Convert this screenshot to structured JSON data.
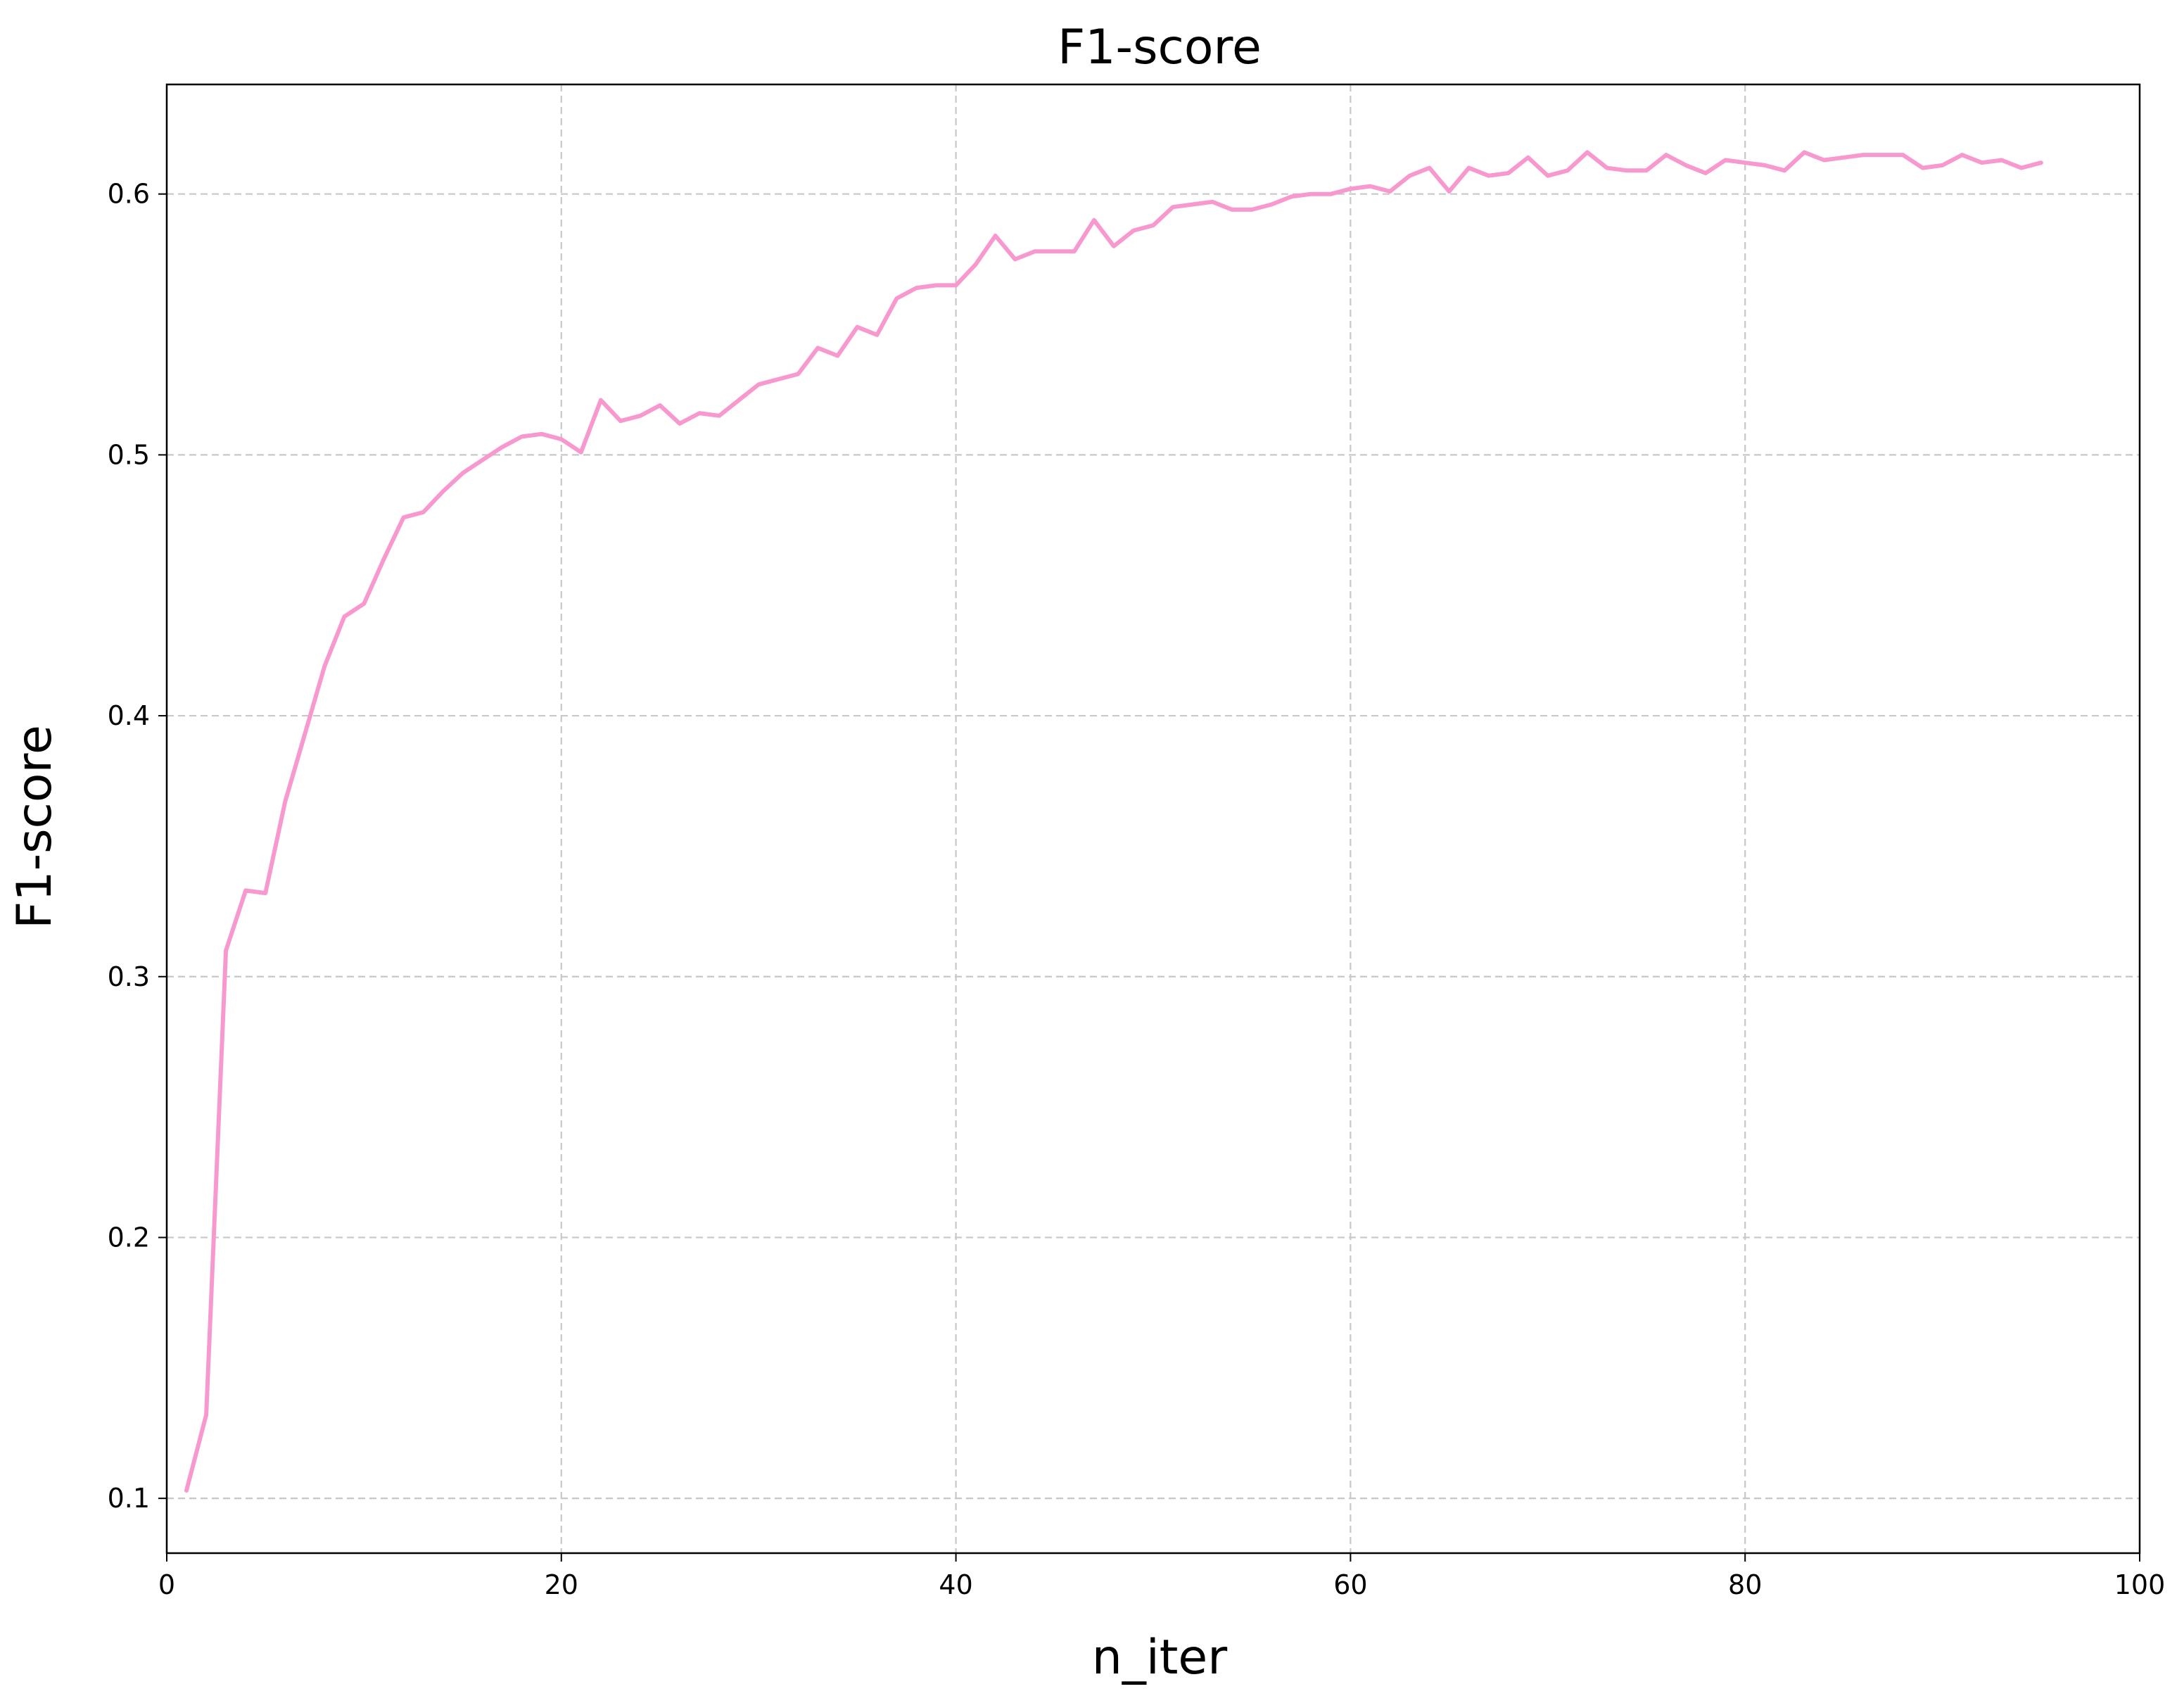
{
  "chart_data": {
    "type": "line",
    "title": "F1-score",
    "xlabel": "n_iter",
    "ylabel": "F1-score",
    "xlim": [
      0,
      100
    ],
    "ylim": [
      0.079,
      0.642
    ],
    "xticks": [
      0,
      20,
      40,
      60,
      80,
      100
    ],
    "xtick_labels": [
      "0",
      "20",
      "40",
      "60",
      "80",
      "100"
    ],
    "yticks": [
      0.1,
      0.2,
      0.3,
      0.4,
      0.5,
      0.6
    ],
    "ytick_labels": [
      "0.1",
      "0.2",
      "0.3",
      "0.4",
      "0.5",
      "0.6"
    ],
    "grid": true,
    "legend": "none",
    "colors": {
      "series": "#f799cf",
      "grid": "#c8c8c8",
      "axes": "#000000"
    },
    "series": [
      {
        "x": [
          1,
          2,
          3,
          4,
          5,
          6,
          7,
          8,
          9,
          10,
          11,
          12,
          13,
          14,
          15,
          16,
          17,
          18,
          19,
          20,
          21,
          22,
          23,
          24,
          25,
          26,
          27,
          28,
          29,
          30,
          31,
          32,
          33,
          34,
          35,
          36,
          37,
          38,
          39,
          40,
          41,
          42,
          43,
          44,
          45,
          46,
          47,
          48,
          49,
          50,
          51,
          52,
          53,
          54,
          55,
          56,
          57,
          58,
          59,
          60,
          61,
          62,
          63,
          64,
          65,
          66,
          67,
          68,
          69,
          70,
          71,
          72,
          73,
          74,
          75,
          76,
          77,
          78,
          79,
          80,
          81,
          82,
          83,
          84,
          85,
          86,
          87,
          88,
          89,
          90,
          91,
          92,
          93,
          94,
          95
        ],
        "values": [
          0.103,
          0.132,
          0.31,
          0.333,
          0.332,
          0.367,
          0.393,
          0.419,
          0.438,
          0.443,
          0.46,
          0.476,
          0.478,
          0.486,
          0.493,
          0.498,
          0.503,
          0.507,
          0.508,
          0.506,
          0.501,
          0.521,
          0.513,
          0.515,
          0.519,
          0.512,
          0.516,
          0.515,
          0.521,
          0.527,
          0.529,
          0.531,
          0.541,
          0.538,
          0.549,
          0.546,
          0.56,
          0.564,
          0.565,
          0.565,
          0.573,
          0.584,
          0.575,
          0.578,
          0.578,
          0.578,
          0.59,
          0.58,
          0.586,
          0.588,
          0.595,
          0.596,
          0.597,
          0.594,
          0.594,
          0.596,
          0.599,
          0.6,
          0.6,
          0.602,
          0.603,
          0.601,
          0.607,
          0.61,
          0.601,
          0.61,
          0.607,
          0.608,
          0.614,
          0.607,
          0.609,
          0.616,
          0.61,
          0.609,
          0.609,
          0.615,
          0.611,
          0.608,
          0.613,
          0.612,
          0.611,
          0.609,
          0.616,
          0.613,
          0.614,
          0.615,
          0.615,
          0.615,
          0.61,
          0.611,
          0.615,
          0.612,
          0.613,
          0.61,
          0.612
        ]
      }
    ]
  }
}
